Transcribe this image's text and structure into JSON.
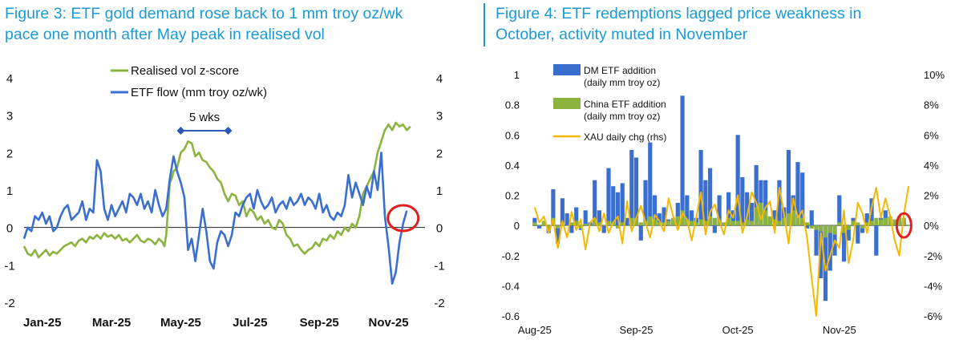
{
  "chart_data": [
    {
      "type": "line",
      "title_line1": "Figure 3: ETF gold demand rose back to 1 mm troy oz/wk",
      "title_line2": "pace one month after May peak in realised vol",
      "x_ticks": [
        "Jan-25",
        "Mar-25",
        "May-25",
        "Jul-25",
        "Sep-25",
        "Nov-25"
      ],
      "x_range": [
        0,
        11.0
      ],
      "y_left_ticks": [
        "4",
        "3",
        "2",
        "1",
        "0",
        "-1",
        "-2"
      ],
      "y_right_ticks": [
        "4",
        "3",
        "2",
        "1",
        "0",
        "-1",
        "-2"
      ],
      "ylim": [
        -2,
        4
      ],
      "annotation": "5 wks",
      "annotation_span": [
        4.3,
        5.6
      ],
      "highlight_circle_at": [
        10.4,
        0.25
      ],
      "colors": {
        "vol": "#8db33f",
        "flow": "#3a6fd0",
        "circle": "#e02020",
        "annotation": "#2e58b8"
      },
      "series": [
        {
          "name": "Realised vol z-score",
          "x": [
            0,
            0.1,
            0.2,
            0.3,
            0.4,
            0.5,
            0.6,
            0.7,
            0.8,
            0.9,
            1.0,
            1.1,
            1.2,
            1.3,
            1.4,
            1.5,
            1.6,
            1.7,
            1.8,
            1.9,
            2.0,
            2.1,
            2.2,
            2.3,
            2.4,
            2.5,
            2.6,
            2.7,
            2.8,
            2.9,
            3.0,
            3.1,
            3.2,
            3.3,
            3.4,
            3.5,
            3.6,
            3.7,
            3.8,
            3.85,
            3.9,
            4.0,
            4.05,
            4.1,
            4.2,
            4.3,
            4.4,
            4.5,
            4.6,
            4.7,
            4.8,
            4.9,
            5.0,
            5.1,
            5.2,
            5.3,
            5.4,
            5.5,
            5.6,
            5.7,
            5.8,
            5.9,
            6.0,
            6.1,
            6.2,
            6.3,
            6.4,
            6.5,
            6.6,
            6.7,
            6.8,
            6.9,
            7.0,
            7.1,
            7.2,
            7.3,
            7.4,
            7.5,
            7.6,
            7.7,
            7.8,
            7.9,
            8.0,
            8.1,
            8.2,
            8.3,
            8.4,
            8.5,
            8.6,
            8.7,
            8.8,
            8.9,
            9.0,
            9.1,
            9.2,
            9.3,
            9.4,
            9.5,
            9.6,
            9.7,
            9.8,
            9.9,
            10.0,
            10.1,
            10.2,
            10.3,
            10.4,
            10.5,
            10.6
          ],
          "values": [
            -0.5,
            -0.7,
            -0.75,
            -0.6,
            -0.8,
            -0.7,
            -0.6,
            -0.75,
            -0.65,
            -0.7,
            -0.6,
            -0.5,
            -0.45,
            -0.4,
            -0.5,
            -0.35,
            -0.3,
            -0.4,
            -0.25,
            -0.3,
            -0.2,
            -0.3,
            -0.15,
            -0.25,
            -0.2,
            -0.3,
            -0.2,
            -0.35,
            -0.3,
            -0.4,
            -0.3,
            -0.2,
            -0.35,
            -0.4,
            -0.3,
            -0.35,
            -0.45,
            -0.3,
            -0.4,
            -0.5,
            -0.2,
            1.2,
            1.3,
            1.5,
            1.6,
            2.0,
            2.1,
            2.3,
            2.25,
            1.9,
            2.0,
            1.8,
            1.75,
            1.6,
            1.5,
            1.3,
            1.2,
            0.9,
            0.7,
            0.9,
            0.85,
            0.6,
            0.7,
            0.3,
            0.5,
            0.4,
            0.2,
            0.3,
            0.1,
            0.2,
            0.0,
            -0.05,
            0.2,
            0.1,
            -0.2,
            -0.3,
            -0.5,
            -0.45,
            -0.6,
            -0.7,
            -0.6,
            -0.55,
            -0.4,
            -0.5,
            -0.3,
            -0.35,
            -0.2,
            -0.3,
            -0.1,
            -0.2,
            0.0,
            -0.1,
            0.1,
            0.0,
            0.3,
            0.9,
            1.1,
            1.3,
            1.5,
            2.0,
            2.3,
            2.6,
            2.75,
            2.6,
            2.8,
            2.7,
            2.75,
            2.6,
            2.7
          ]
        },
        {
          "name": "ETF flow (mm troy oz/wk)",
          "x": [
            0,
            0.1,
            0.2,
            0.3,
            0.4,
            0.5,
            0.6,
            0.7,
            0.8,
            0.9,
            1.0,
            1.1,
            1.2,
            1.3,
            1.4,
            1.5,
            1.6,
            1.7,
            1.8,
            1.9,
            2.0,
            2.1,
            2.2,
            2.3,
            2.4,
            2.5,
            2.6,
            2.7,
            2.8,
            2.9,
            3.0,
            3.1,
            3.2,
            3.3,
            3.4,
            3.5,
            3.6,
            3.7,
            3.8,
            3.9,
            4.0,
            4.1,
            4.2,
            4.3,
            4.4,
            4.5,
            4.6,
            4.7,
            4.8,
            4.9,
            5.0,
            5.1,
            5.2,
            5.3,
            5.4,
            5.5,
            5.6,
            5.7,
            5.8,
            5.9,
            6.0,
            6.1,
            6.2,
            6.3,
            6.4,
            6.5,
            6.6,
            6.7,
            6.8,
            6.9,
            7.0,
            7.1,
            7.2,
            7.3,
            7.4,
            7.5,
            7.6,
            7.7,
            7.8,
            7.9,
            8.0,
            8.1,
            8.2,
            8.3,
            8.4,
            8.5,
            8.6,
            8.7,
            8.8,
            8.9,
            9.0,
            9.1,
            9.2,
            9.3,
            9.4,
            9.5,
            9.6,
            9.7,
            9.8,
            9.9,
            10.0,
            10.1,
            10.2,
            10.3,
            10.4,
            10.5
          ],
          "values": [
            -0.3,
            0.0,
            -0.1,
            0.3,
            0.2,
            0.4,
            0.1,
            0.3,
            -0.1,
            0.0,
            0.3,
            0.5,
            0.6,
            0.2,
            0.3,
            0.4,
            0.7,
            0.2,
            0.5,
            0.4,
            1.8,
            1.5,
            0.5,
            0.2,
            0.6,
            0.3,
            0.5,
            0.7,
            0.4,
            0.9,
            0.8,
            0.6,
            0.9,
            0.5,
            0.7,
            0.4,
            1.0,
            0.6,
            0.3,
            0.5,
            1.3,
            1.9,
            1.5,
            1.2,
            0.8,
            -0.6,
            -0.3,
            -0.9,
            -0.2,
            0.5,
            -0.1,
            -0.9,
            -1.1,
            -0.4,
            -0.1,
            -0.2,
            -0.5,
            -0.2,
            0.4,
            0.3,
            0.6,
            0.8,
            0.9,
            0.5,
            1.0,
            0.7,
            0.5,
            0.6,
            0.8,
            0.4,
            0.6,
            0.7,
            0.5,
            0.8,
            0.6,
            0.7,
            0.9,
            0.6,
            0.8,
            0.7,
            0.5,
            0.9,
            0.4,
            0.6,
            0.3,
            0.2,
            0.4,
            0.3,
            0.6,
            1.4,
            0.8,
            1.2,
            0.9,
            0.6,
            1.1,
            0.8,
            1.5,
            1.0,
            2.0,
            0.3,
            -0.5,
            -1.5,
            -1.2,
            -0.4,
            0.1,
            0.45
          ]
        }
      ]
    },
    {
      "type": "bar",
      "title_line1": "Figure 4: ETF redemptions lagged price weakness in",
      "title_line2": "October, activity muted in November",
      "x_ticks": [
        "Aug-25",
        "Sep-25",
        "Oct-25",
        "Nov-25"
      ],
      "y_left_ticks": [
        "1",
        "0.8",
        "0.6",
        "0.4",
        "0.2",
        "0",
        "-0.2",
        "-0.4",
        "-0.6"
      ],
      "y_right_ticks": [
        "10%",
        "8%",
        "6%",
        "4%",
        "2%",
        "0%",
        "-2%",
        "-4%",
        "-6%"
      ],
      "ylim_left": [
        -0.6,
        1.0
      ],
      "ylim_right": [
        -6,
        10
      ],
      "legend": [
        {
          "label_line1": "DM ETF addition",
          "label_line2": "(daily mm troy oz)"
        },
        {
          "label_line1": "China ETF addition",
          "label_line2": "(daily mm troy oz)"
        },
        {
          "label_line1": "XAU daily chg (rhs)",
          "label_line2": ""
        }
      ],
      "colors": {
        "dm": "#3a6fd0",
        "china": "#8db33f",
        "xau": "#f5b800",
        "circle": "#e02020"
      },
      "highlight_circle_at": [
        80,
        0.0
      ],
      "series": [
        {
          "name": "DM ETF addition",
          "values": [
            0.05,
            -0.02,
            0.02,
            -0.05,
            0.24,
            -0.12,
            0.18,
            0.08,
            -0.05,
            0.12,
            -0.03,
            0.1,
            0.02,
            0.3,
            0.1,
            -0.05,
            0.38,
            0.26,
            0.22,
            0.28,
            0.05,
            0.5,
            0.45,
            -0.1,
            0.3,
            0.55,
            0.2,
            0.08,
            0.12,
            0.04,
            0.03,
            0.15,
            0.86,
            0.2,
            0.1,
            0.05,
            0.5,
            0.3,
            0.38,
            -0.05,
            0.2,
            0.02,
            0.22,
            0.1,
            0.6,
            0.32,
            0.22,
            0.15,
            0.4,
            0.3,
            0.3,
            0.05,
            0.1,
            0.3,
            0.12,
            0.5,
            0.2,
            0.42,
            0.35,
            -0.02,
            0.1,
            -0.2,
            -0.35,
            -0.5,
            -0.3,
            -0.2,
            0.2,
            -0.24,
            -0.1,
            0.05,
            -0.12,
            -0.05,
            0.08,
            0.18,
            -0.2,
            0.05,
            0.1,
            0.02,
            0.0,
            0.03,
            0.02,
            0.0
          ]
        },
        {
          "name": "China ETF addition",
          "values": [
            0.02,
            0.0,
            0.03,
            -0.03,
            0.05,
            -0.02,
            0.02,
            0.0,
            0.02,
            0.03,
            -0.02,
            0.01,
            0.0,
            0.04,
            0.02,
            0.0,
            0.03,
            0.02,
            -0.02,
            0.02,
            0.0,
            0.05,
            0.05,
            0.02,
            0.03,
            0.06,
            0.04,
            0.02,
            0.02,
            0.03,
            0.05,
            0.06,
            0.1,
            0.04,
            0.03,
            0.02,
            0.04,
            0.03,
            0.06,
            0.05,
            0.04,
            0.02,
            0.05,
            0.03,
            0.03,
            0.02,
            0.04,
            0.03,
            0.12,
            0.15,
            0.1,
            0.06,
            0.04,
            0.03,
            0.05,
            0.08,
            0.1,
            0.06,
            0.05,
            0.02,
            -0.02,
            -0.03,
            -0.04,
            -0.08,
            -0.05,
            -0.06,
            0.02,
            -0.05,
            -0.03,
            0.03,
            0.02,
            -0.02,
            0.02,
            0.03,
            0.05,
            0.04,
            0.05,
            0.06,
            0.04,
            0.06,
            0.05,
            0.0
          ]
        },
        {
          "name": "XAU daily chg (rhs)",
          "values": [
            1.2,
            0.2,
            0.6,
            -0.5,
            0.4,
            -1.5,
            0.3,
            -0.8,
            0.9,
            -0.3,
            0.4,
            -1.6,
            0.2,
            0.5,
            -0.4,
            0.8,
            -0.5,
            0.2,
            0.6,
            -1.2,
            1.6,
            -0.4,
            0.5,
            1.3,
            0.2,
            -0.8,
            0.7,
            0.3,
            -0.4,
            1.8,
            0.6,
            -0.3,
            0.8,
            0.4,
            -1.0,
            0.5,
            2.2,
            -0.6,
            0.9,
            1.4,
            0.3,
            -0.6,
            1.0,
            0.5,
            2.0,
            -0.5,
            0.6,
            2.2,
            1.5,
            0.4,
            1.2,
            1.6,
            -0.5,
            2.5,
            0.8,
            -1.2,
            1.8,
            0.5,
            1.0,
            -0.8,
            -3.5,
            -6.0,
            -0.5,
            -3.0,
            -2.0,
            -1.0,
            -1.5,
            1.0,
            -2.5,
            -1.0,
            1.5,
            0.8,
            -0.5,
            1.2,
            2.5,
            0.5,
            1.8,
            0.6,
            -1.0,
            -2.0,
            0.8,
            2.6
          ]
        }
      ]
    }
  ]
}
